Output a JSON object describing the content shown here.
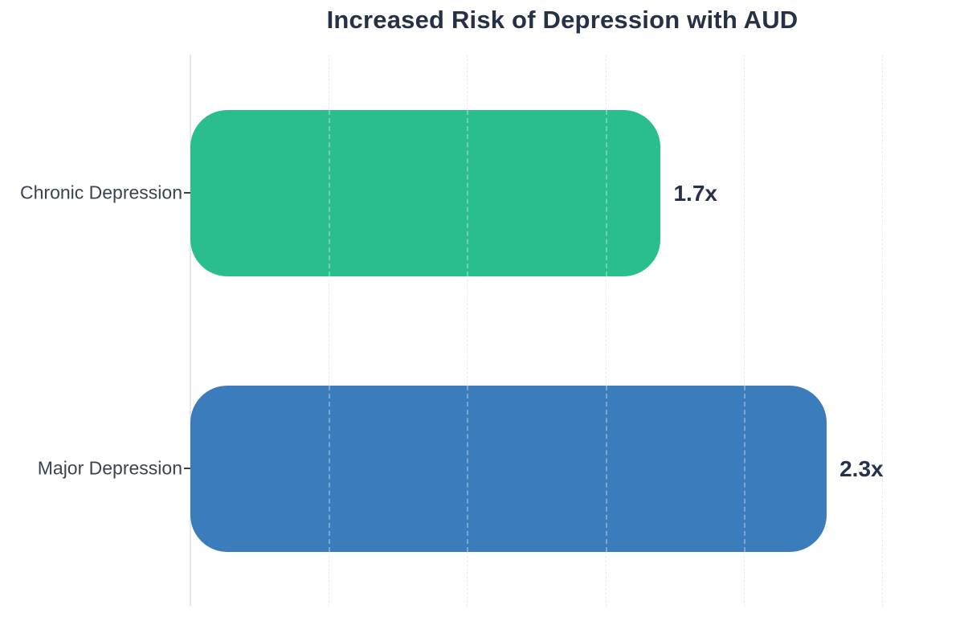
{
  "title": "Increased Risk of Depression with AUD",
  "chart_data": {
    "type": "bar",
    "orientation": "horizontal",
    "title": "Increased Risk of Depression with AUD",
    "categories": [
      "Chronic Depression",
      "Major Depression"
    ],
    "values": [
      1.7,
      2.3
    ],
    "value_labels": [
      "1.7x",
      "2.3x"
    ],
    "bar_colors": [
      "#2abd8e",
      "#3b7cbd"
    ],
    "xlabel": "",
    "ylabel": "",
    "xlim": [
      0,
      2.69
    ],
    "grid": {
      "axis": "x",
      "interval": 0.5,
      "values": [
        0.5,
        1.0,
        1.5,
        2.0,
        2.5
      ],
      "style": "dashed"
    },
    "legend": "none"
  },
  "colors": {
    "background": "#ffffff",
    "title_text": "#263147",
    "category_text": "#3b4353",
    "value_text": "#27324a",
    "axis_line": "#e7e7ec",
    "gridline": "#ebebee",
    "bar_chronic": "#2abd8e",
    "bar_major": "#3b7cbd"
  }
}
